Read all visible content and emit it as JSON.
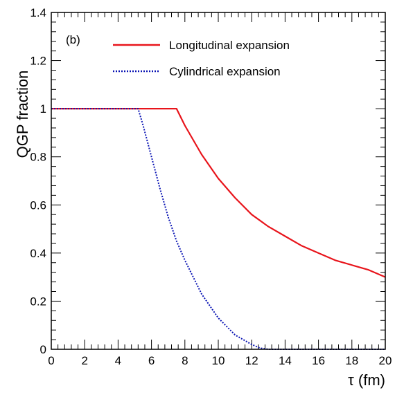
{
  "chart_data": {
    "type": "line",
    "panel_label": "(b)",
    "xlabel": "τ (fm)",
    "ylabel": "QGP fraction",
    "xlim": [
      0,
      20
    ],
    "ylim": [
      0,
      1.4
    ],
    "x_ticks": [
      0,
      2,
      4,
      6,
      8,
      10,
      12,
      14,
      16,
      18,
      20
    ],
    "y_ticks": [
      0,
      0.2,
      0.4,
      0.6,
      0.8,
      1,
      1.2,
      1.4
    ],
    "x_tick_labels": [
      "0",
      "2",
      "4",
      "6",
      "8",
      "10",
      "12",
      "14",
      "16",
      "18",
      "20"
    ],
    "y_tick_labels": [
      "0",
      "0.2",
      "0.4",
      "0.6",
      "0.8",
      "1",
      "1.2",
      "1.4"
    ],
    "legend_position": "top",
    "grid": false,
    "series": [
      {
        "name": "Longitudinal expansion",
        "color": "#e8141b",
        "style": "solid",
        "x": [
          0,
          7.5,
          8,
          9,
          10,
          11,
          12,
          13,
          14,
          15,
          16,
          17,
          18,
          19,
          20
        ],
        "y": [
          1,
          1,
          0.93,
          0.81,
          0.71,
          0.63,
          0.56,
          0.51,
          0.47,
          0.43,
          0.4,
          0.37,
          0.35,
          0.33,
          0.3
        ]
      },
      {
        "name": "Cylindrical expansion",
        "color": "#0a14b4",
        "style": "dotted",
        "x": [
          0,
          5.2,
          5.5,
          6,
          6.5,
          7,
          7.5,
          8,
          9,
          10,
          11,
          12,
          12.5,
          13,
          20
        ],
        "y": [
          1,
          1,
          0.93,
          0.8,
          0.67,
          0.55,
          0.45,
          0.37,
          0.23,
          0.13,
          0.06,
          0.02,
          0.005,
          0,
          0
        ]
      }
    ]
  }
}
